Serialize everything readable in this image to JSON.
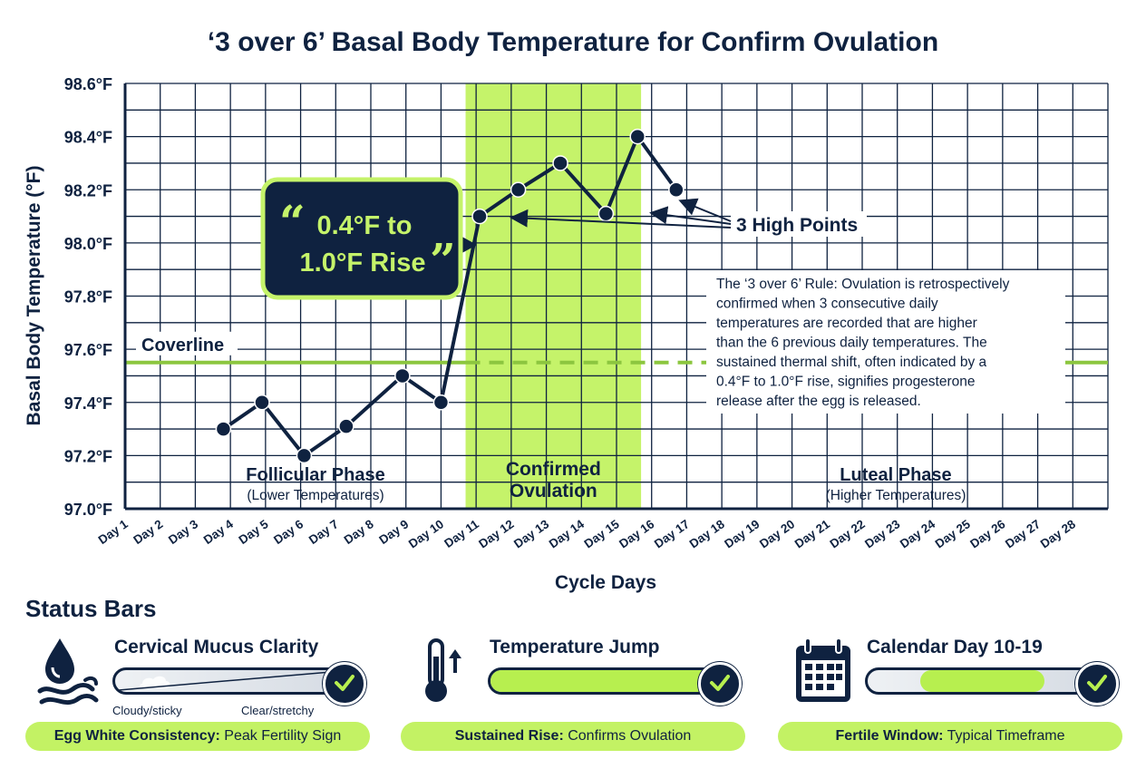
{
  "chart_data": {
    "type": "line",
    "title": "‘3 over 6’ Basal Body Temperature for Confirm  Ovulation",
    "xlabel": "Cycle Days",
    "ylabel": "Basal Body Temperature (°F)",
    "ylim": [
      97.0,
      98.6
    ],
    "yticks": [
      "97.0°F",
      "97.2°F",
      "97.4°F",
      "97.6°F",
      "97.8°F",
      "98.0°F",
      "98.2°F",
      "98.4°F",
      "98.6°F"
    ],
    "categories": [
      "Day 1",
      "Day 2",
      "Day 3",
      "Day 4",
      "Day 5",
      "Day 6",
      "Day 7",
      "Day 8",
      "Day 9",
      "Day 10",
      "Day 11",
      "Day 12",
      "Day 13",
      "Day 14",
      "Day 15",
      "Day 16",
      "Day 17",
      "Day 18",
      "Day 19",
      "Day 20",
      "Day 21",
      "Day 22",
      "Day 23",
      "Day 24",
      "Day 25",
      "Day 26",
      "Day 27",
      "Day 28"
    ],
    "grid": true,
    "series": [
      {
        "x": [
          3.8,
          4.9,
          6.1,
          7.3,
          8.9,
          10.0,
          11.1,
          12.2,
          13.4,
          14.7,
          15.6,
          16.7
        ],
        "values": [
          97.3,
          97.4,
          97.2,
          97.31,
          97.5,
          97.4,
          98.1,
          98.2,
          98.3,
          98.11,
          98.4,
          98.2
        ]
      }
    ],
    "coverline": {
      "value": 97.55,
      "label": "Coverline"
    },
    "ovulation_band": {
      "from": 10.7,
      "to": 15.7,
      "label_line1": "Confirmed",
      "label_line2": "Ovulation"
    },
    "follicular": {
      "title": "Follicular Phase",
      "subtitle": "(Lower Temperatures)"
    },
    "luteal": {
      "title": "Luteal Phase",
      "subtitle": "(Higher Temperatures)"
    },
    "callout": {
      "line1": "0.4°F to",
      "line2": "1.0°F Rise"
    },
    "high_points_label": "3 High Points",
    "rule_text": [
      "The ‘3 over 6’ Rule: Ovulation is retrospectively",
      "confirmed when 3 consecutive daily",
      "temperatures are recorded that are higher",
      "than the 6 previous daily temperatures. The",
      "sustained thermal shift, often indicated by a",
      "0.4°F to 1.0°F rise, signifies progesterone",
      "release after the egg is released."
    ],
    "colors": {
      "navy": "#0f2240",
      "green": "#b7ef4f",
      "band": "#c5f36a",
      "coverline": "#8cc63f"
    }
  },
  "status": {
    "title": "Status Bars",
    "mucus": {
      "label": "Cervical Mucus Clarity",
      "icon": "water-drop-icon",
      "scale_left": "Cloudy/sticky",
      "scale_right": "Clear/stretchy",
      "pill_bold": "Egg White Consistency:",
      "pill_text": " Peak Fertility Sign"
    },
    "temperature": {
      "label": "Temperature Jump",
      "icon": "thermometer-up-icon",
      "fill": 1.0,
      "pill_bold": "Sustained Rise:",
      "pill_text": " Confirms Ovulation"
    },
    "calendar": {
      "label": "Calendar Day 10-19",
      "icon": "calendar-icon",
      "fill_from": 0.22,
      "fill_to": 0.74,
      "pill_bold": "Fertile Window:",
      "pill_text": " Typical Timeframe"
    }
  }
}
